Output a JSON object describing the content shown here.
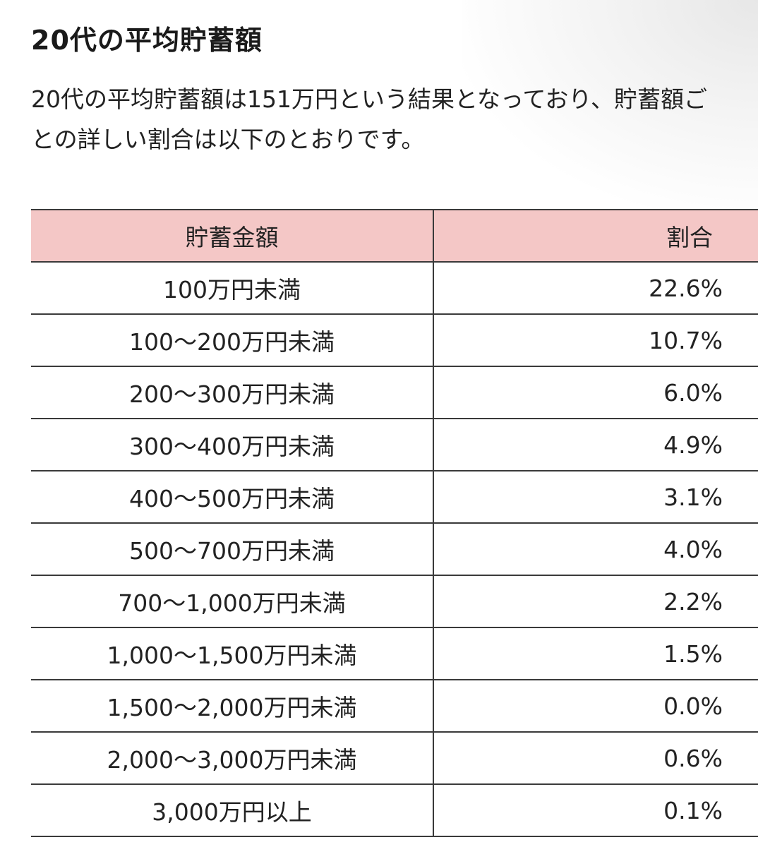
{
  "article": {
    "heading": "20代の平均貯蓄額",
    "intro": "20代の平均貯蓄額は151万円という結果となっており、貯蓄額ごとの詳しい割合は以下のとおりです。"
  },
  "table": {
    "header_color": "#f4c7c6",
    "columns": [
      "貯蓄金額",
      "割合"
    ],
    "rows": [
      {
        "range": "100万円未満",
        "ratio": "22.6%"
      },
      {
        "range": "100～200万円未満",
        "ratio": "10.7%"
      },
      {
        "range": "200～300万円未満",
        "ratio": "6.0%"
      },
      {
        "range": "300～400万円未満",
        "ratio": "4.9%"
      },
      {
        "range": "400～500万円未満",
        "ratio": "3.1%"
      },
      {
        "range": "500～700万円未満",
        "ratio": "4.0%"
      },
      {
        "range": "700～1,000万円未満",
        "ratio": "2.2%"
      },
      {
        "range": "1,000～1,500万円未満",
        "ratio": "1.5%"
      },
      {
        "range": "1,500～2,000万円未満",
        "ratio": "0.0%"
      },
      {
        "range": "2,000～3,000万円未満",
        "ratio": "0.6%"
      },
      {
        "range": "3,000万円以上",
        "ratio": "0.1%"
      }
    ]
  }
}
